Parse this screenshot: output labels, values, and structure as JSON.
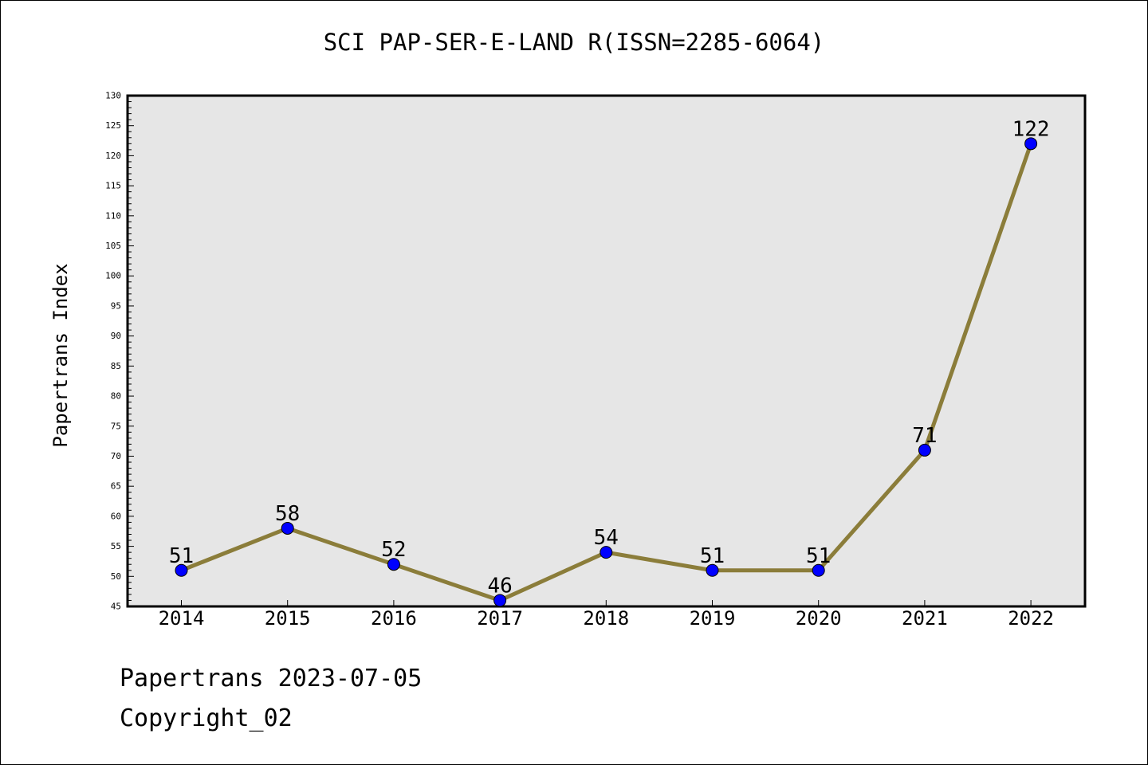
{
  "chart_data": {
    "type": "line",
    "title": "SCI PAP-SER-E-LAND R(ISSN=2285-6064)",
    "xlabel": "",
    "ylabel": "Papertrans Index",
    "categories": [
      "2014",
      "2015",
      "2016",
      "2017",
      "2018",
      "2019",
      "2020",
      "2021",
      "2022"
    ],
    "series": [
      {
        "values": [
          51,
          58,
          52,
          46,
          54,
          51,
          51,
          71,
          122
        ]
      }
    ],
    "data_labels": [
      "51",
      "58",
      "52",
      "46",
      "54",
      "51",
      "51",
      "71",
      "122"
    ],
    "ylim": [
      45,
      130
    ],
    "yticks": [
      45,
      50,
      55,
      60,
      65,
      70,
      75,
      80,
      85,
      90,
      95,
      100,
      105,
      110,
      115,
      120,
      125,
      130
    ],
    "grid": false,
    "colors": {
      "line": "#8b7d3a",
      "marker": "#0000ff",
      "plot_background": "#e6e6e6"
    }
  },
  "footer": {
    "date_line": "Papertrans 2023-07-05",
    "copyright": "Copyright_02"
  }
}
